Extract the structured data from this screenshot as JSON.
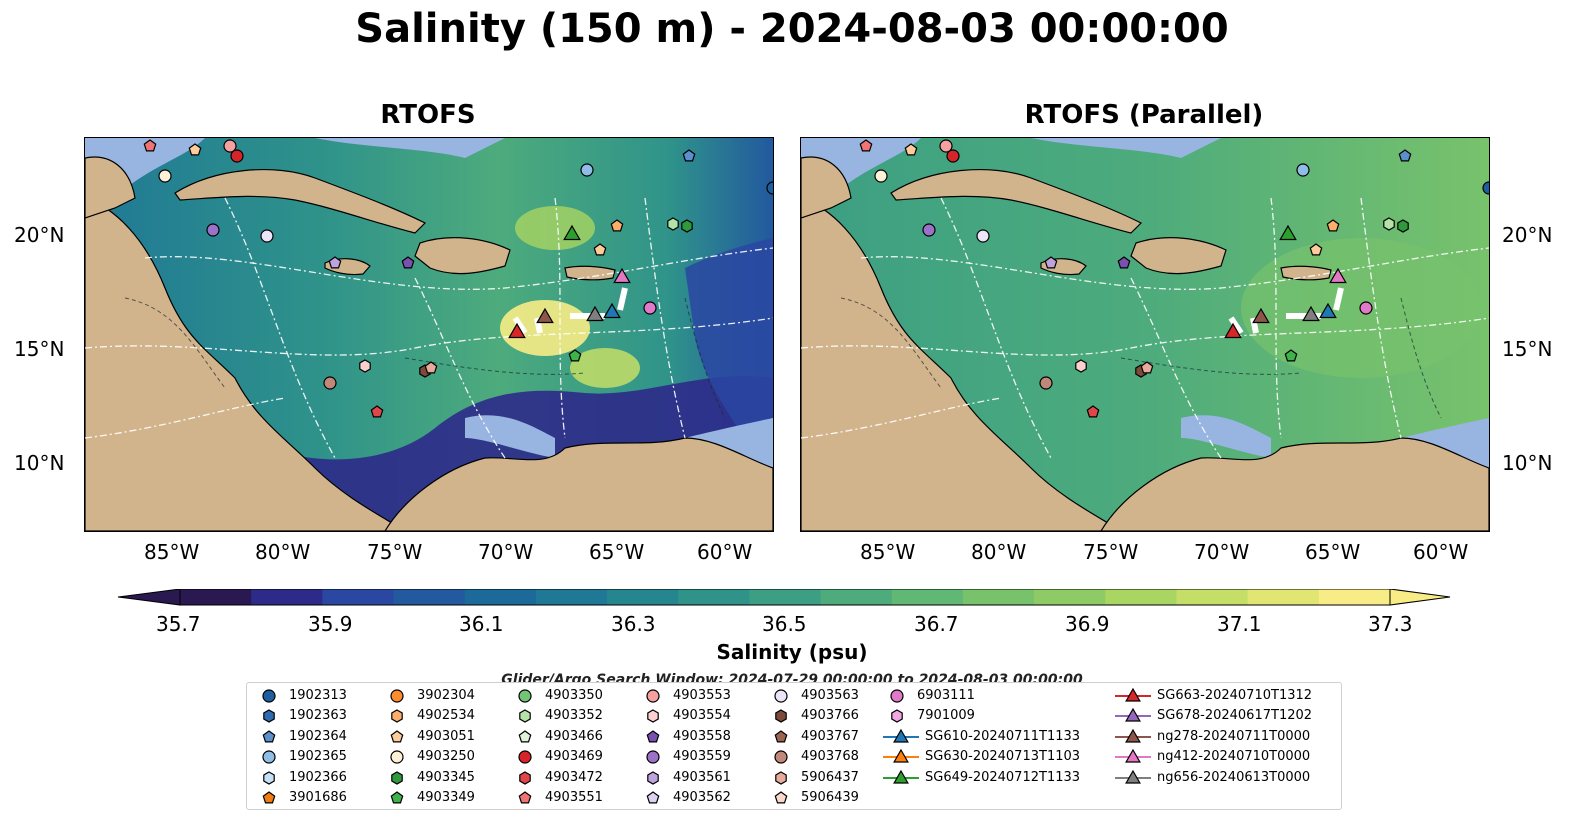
{
  "figure": {
    "title": "Salinity (150 m) - 2024-08-03 00:00:00",
    "panels": [
      {
        "title": "RTOFS"
      },
      {
        "title": "RTOFS (Parallel)"
      }
    ],
    "lat_ticks": [
      "20°N",
      "15°N",
      "10°N"
    ],
    "lon_ticks": [
      "85°W",
      "80°W",
      "75°W",
      "70°W",
      "65°W",
      "60°W"
    ],
    "colorbar": {
      "label": "Salinity (psu)",
      "ticks": [
        "35.7",
        "35.9",
        "36.1",
        "36.3",
        "36.5",
        "36.7",
        "36.9",
        "37.1",
        "37.3"
      ],
      "range": [
        35.6,
        37.4
      ],
      "levels": [
        "#2a1850",
        "#2e2a8a",
        "#2a47a2",
        "#22599f",
        "#1c6a99",
        "#1f7895",
        "#26868f",
        "#2f938a",
        "#3c9f83",
        "#4dab7c",
        "#61b774",
        "#78c26c",
        "#8fcb65",
        "#a9d562",
        "#c4de67",
        "#e1e673",
        "#f7ec86"
      ]
    },
    "search_window": "Glider/Argo Search Window: 2024-07-29 00:00:00 to 2024-08-03 00:00:00"
  },
  "colors": {
    "land": "#d2b48c",
    "shelf": "#98b4e0",
    "boundary": "#ffffff"
  },
  "legend": {
    "columns": [
      [
        {
          "label": "1902313",
          "marker": "circle",
          "color": "#1f5fa0"
        },
        {
          "label": "1902363",
          "marker": "hexagon",
          "color": "#2e6bb0"
        },
        {
          "label": "1902364",
          "marker": "pentagon",
          "color": "#5b90cc"
        },
        {
          "label": "1902365",
          "marker": "circle",
          "color": "#90bde6"
        },
        {
          "label": "1902366",
          "marker": "hexagon",
          "color": "#c6e0f5"
        },
        {
          "label": "3901686",
          "marker": "pentagon",
          "color": "#f07c14"
        }
      ],
      [
        {
          "label": "3902304",
          "marker": "circle",
          "color": "#fd8d2c"
        },
        {
          "label": "4902534",
          "marker": "hexagon",
          "color": "#fdae6b"
        },
        {
          "label": "4903051",
          "marker": "pentagon",
          "color": "#fdcc9a"
        },
        {
          "label": "4903250",
          "marker": "circle",
          "color": "#fff0d8"
        },
        {
          "label": "4903345",
          "marker": "hexagon",
          "color": "#2e9a3c"
        },
        {
          "label": "4903349",
          "marker": "pentagon",
          "color": "#3db34a"
        }
      ],
      [
        {
          "label": "4903350",
          "marker": "circle",
          "color": "#74c476"
        },
        {
          "label": "4903352",
          "marker": "hexagon",
          "color": "#b3e3a8"
        },
        {
          "label": "4903466",
          "marker": "pentagon",
          "color": "#dff3d8"
        },
        {
          "label": "4903469",
          "marker": "circle",
          "color": "#d6252a"
        },
        {
          "label": "4903472",
          "marker": "hexagon",
          "color": "#e0474a"
        },
        {
          "label": "4903551",
          "marker": "pentagon",
          "color": "#f07474"
        }
      ],
      [
        {
          "label": "4903553",
          "marker": "circle",
          "color": "#f7a0a0"
        },
        {
          "label": "4903554",
          "marker": "hexagon",
          "color": "#fbd0cf"
        },
        {
          "label": "4903558",
          "marker": "pentagon",
          "color": "#7a50b0"
        },
        {
          "label": "4903559",
          "marker": "circle",
          "color": "#9b72c8"
        },
        {
          "label": "4903561",
          "marker": "hexagon",
          "color": "#bea3dc"
        },
        {
          "label": "4903562",
          "marker": "pentagon",
          "color": "#ddd0f0"
        }
      ],
      [
        {
          "label": "4903563",
          "marker": "circle",
          "color": "#ece4f8"
        },
        {
          "label": "4903766",
          "marker": "hexagon",
          "color": "#7b4a3a"
        },
        {
          "label": "4903767",
          "marker": "pentagon",
          "color": "#9c6552"
        },
        {
          "label": "4903768",
          "marker": "circle",
          "color": "#c08878"
        },
        {
          "label": "5906437",
          "marker": "hexagon",
          "color": "#e8aa9a"
        },
        {
          "label": "5906439",
          "marker": "pentagon",
          "color": "#fbd8cc"
        }
      ],
      [
        {
          "label": "6903111",
          "marker": "circle",
          "color": "#e07ac8"
        },
        {
          "label": "7901009",
          "marker": "hexagon",
          "color": "#f2a8e2"
        },
        {
          "label": "SG610-20240711T1133",
          "marker": "triangle-line",
          "color": "#1f77b4"
        },
        {
          "label": "SG630-20240713T1103",
          "marker": "triangle-line",
          "color": "#ff7f0e"
        },
        {
          "label": "SG649-20240712T1133",
          "marker": "triangle-line",
          "color": "#2ca02c"
        }
      ],
      [
        {
          "label": "SG663-20240710T1312",
          "marker": "triangle-line",
          "color": "#d62728"
        },
        {
          "label": "SG678-20240617T1202",
          "marker": "triangle-line",
          "color": "#9467bd"
        },
        {
          "label": "ng278-20240711T0000",
          "marker": "triangle-line",
          "color": "#8c564b"
        },
        {
          "label": "ng412-20240710T0000",
          "marker": "triangle-line",
          "color": "#e377c2"
        },
        {
          "label": "ng656-20240613T0000",
          "marker": "triangle-line",
          "color": "#7f7f7f"
        }
      ]
    ]
  }
}
